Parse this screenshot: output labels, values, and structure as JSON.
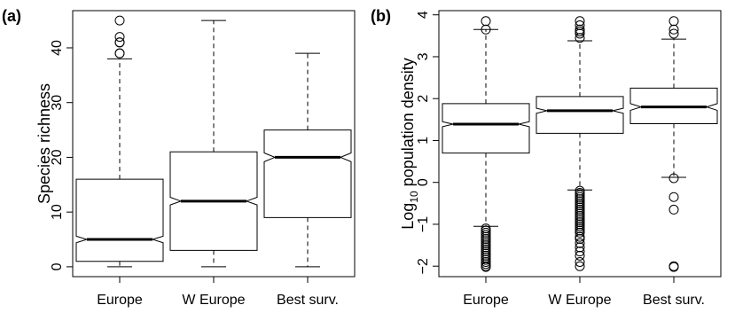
{
  "chart_data": [
    {
      "type": "box",
      "panel_label": "(a)",
      "categories": [
        "Europe",
        "W Europe",
        "Best surv."
      ],
      "ylabel": "Species richness",
      "ylabel_sub": "",
      "ylabel_rest": "",
      "yticks": [
        0,
        10,
        20,
        30,
        40
      ],
      "ylim": [
        -1.8,
        46.8
      ],
      "boxes": [
        {
          "whisker_low": 0,
          "q1": 1,
          "median": 5,
          "q3": 16,
          "whisker_high": 38,
          "notch_low": 4.4,
          "notch_high": 5.6,
          "outliers": [
            39,
            39,
            41,
            41,
            42,
            45
          ]
        },
        {
          "whisker_low": 0,
          "q1": 3,
          "median": 12,
          "q3": 21,
          "whisker_high": 45,
          "notch_low": 11.3,
          "notch_high": 12.7,
          "outliers": []
        },
        {
          "whisker_low": 0,
          "q1": 9,
          "median": 20,
          "q3": 25,
          "whisker_high": 39,
          "notch_low": 19.2,
          "notch_high": 20.8,
          "outliers": []
        }
      ]
    },
    {
      "type": "box",
      "panel_label": "(b)",
      "categories": [
        "Europe",
        "W Europe",
        "Best surv."
      ],
      "ylabel": "Log",
      "ylabel_sub": "10",
      "ylabel_rest": " population density",
      "yticks": [
        -2,
        -1,
        0,
        1,
        2,
        3,
        4
      ],
      "ylim": [
        -2.25,
        4.1
      ],
      "boxes": [
        {
          "whisker_low": -1.05,
          "q1": 0.7,
          "median": 1.39,
          "q3": 1.88,
          "whisker_high": 3.65,
          "notch_low": 1.33,
          "notch_high": 1.45,
          "outliers": [
            -1.1,
            -1.15,
            -1.2,
            -1.25,
            -1.3,
            -1.35,
            -1.4,
            -1.45,
            -1.5,
            -1.55,
            -1.6,
            -1.65,
            -1.7,
            -1.75,
            -1.8,
            -1.85,
            -1.9,
            -1.95,
            -2.0,
            -2.02,
            3.65,
            3.85
          ]
        },
        {
          "whisker_low": -0.18,
          "q1": 1.17,
          "median": 1.71,
          "q3": 2.05,
          "whisker_high": 3.38,
          "notch_low": 1.65,
          "notch_high": 1.77,
          "outliers": [
            -0.2,
            -0.25,
            -0.3,
            -0.35,
            -0.4,
            -0.45,
            -0.5,
            -0.55,
            -0.6,
            -0.65,
            -0.7,
            -0.75,
            -0.8,
            -0.85,
            -0.9,
            -0.95,
            -1.0,
            -1.05,
            -1.1,
            -1.15,
            -1.2,
            -1.3,
            -1.35,
            -1.45,
            -1.55,
            -1.65,
            -1.75,
            -1.9,
            -2.0,
            3.45,
            3.55,
            3.6,
            3.65,
            3.75,
            3.85
          ]
        },
        {
          "whisker_low": 0.12,
          "q1": 1.4,
          "median": 1.8,
          "q3": 2.25,
          "whisker_high": 3.42,
          "notch_low": 1.72,
          "notch_high": 1.88,
          "outliers": [
            0.1,
            -0.35,
            -0.65,
            -2.0,
            -2.02,
            3.55,
            3.65,
            3.85
          ]
        }
      ]
    }
  ]
}
